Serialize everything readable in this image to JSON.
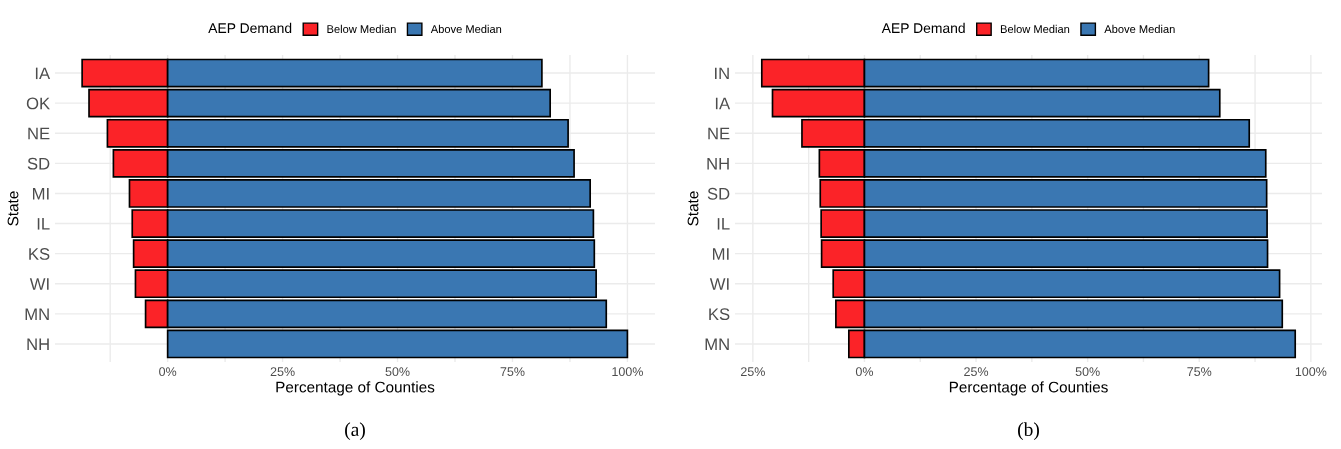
{
  "chart_data": [
    {
      "type": "bar",
      "orientation": "horizontal",
      "stacked": true,
      "categories": [
        "IA",
        "OK",
        "NE",
        "SD",
        "MI",
        "IL",
        "KS",
        "WI",
        "MN",
        "NH"
      ],
      "series": [
        {
          "name": "Below Median",
          "color": "#fb2328",
          "values": [
            -18.6,
            -17.1,
            -13.1,
            -11.8,
            -8.3,
            -7.7,
            -7.4,
            -7.0,
            -4.8,
            null
          ]
        },
        {
          "name": "Above Median",
          "color": "#3a77b2",
          "values": [
            81.4,
            83.2,
            87.1,
            88.4,
            91.9,
            92.6,
            92.8,
            93.2,
            95.4,
            100
          ]
        }
      ],
      "xlim": [
        -24.5,
        106
      ],
      "xticks": [
        {
          "value": -12.5,
          "label": null
        },
        {
          "value": 0,
          "label": "0%"
        },
        {
          "value": 12.5,
          "label": null
        },
        {
          "value": 25,
          "label": "25%"
        },
        {
          "value": 37.5,
          "label": null
        },
        {
          "value": 50,
          "label": "50%"
        },
        {
          "value": 62.5,
          "label": null
        },
        {
          "value": 75,
          "label": "75%"
        },
        {
          "value": 87.5,
          "label": null
        },
        {
          "value": 100,
          "label": "100%"
        }
      ],
      "xlabel": "Percentage of Counties",
      "ylabel": "State",
      "legend_title": "AEP Demand",
      "legend": "top",
      "grid": true,
      "annotations": [
        "(a)"
      ]
    },
    {
      "type": "bar",
      "orientation": "horizontal",
      "stacked": true,
      "categories": [
        "IN",
        "IA",
        "NE",
        "NH",
        "SD",
        "IL",
        "MI",
        "WI",
        "KS",
        "MN"
      ],
      "series": [
        {
          "name": "Below Median",
          "color": "#fb2328",
          "values": [
            -23.0,
            -20.6,
            -14.0,
            -10.1,
            -9.9,
            -9.7,
            -9.6,
            -7.0,
            -6.4,
            -3.5
          ]
        },
        {
          "name": "Above Median",
          "color": "#3a77b2",
          "values": [
            77.1,
            79.6,
            86.2,
            89.9,
            90.1,
            90.2,
            90.3,
            93.0,
            93.6,
            96.5
          ]
        }
      ],
      "xlim": [
        -29,
        102.5
      ],
      "xticks": [
        {
          "value": -25,
          "label": "25%"
        },
        {
          "value": -12.5,
          "label": null
        },
        {
          "value": 0,
          "label": "0%"
        },
        {
          "value": 12.5,
          "label": null
        },
        {
          "value": 25,
          "label": "25%"
        },
        {
          "value": 37.5,
          "label": null
        },
        {
          "value": 50,
          "label": "50%"
        },
        {
          "value": 62.5,
          "label": null
        },
        {
          "value": 75,
          "label": "75%"
        },
        {
          "value": 87.5,
          "label": null
        },
        {
          "value": 100,
          "label": "100%"
        }
      ],
      "xlabel": "Percentage of Counties",
      "ylabel": "State",
      "legend_title": "AEP Demand",
      "legend": "top",
      "grid": true,
      "annotations": [
        "(b)"
      ]
    }
  ]
}
